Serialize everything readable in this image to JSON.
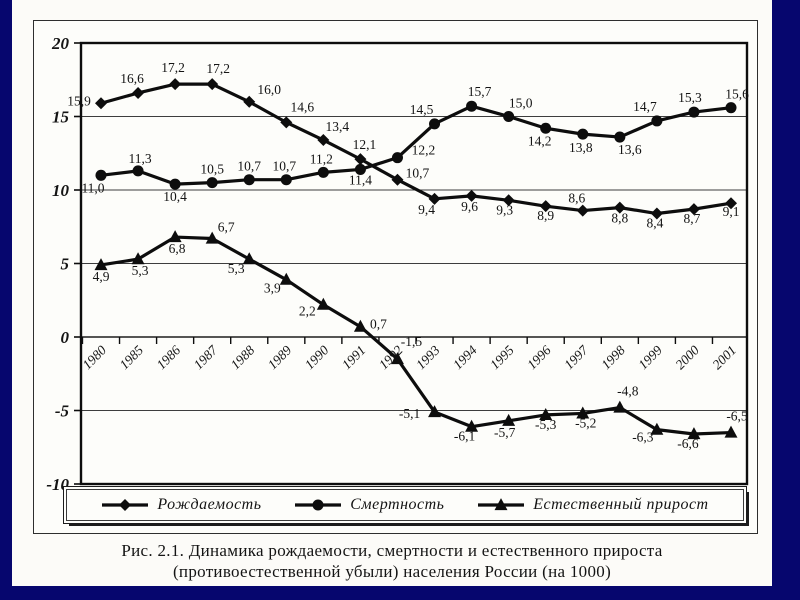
{
  "slide": {
    "frame_color": "#06066e",
    "paper_color": "#fcfbf8",
    "ink_color": "#141414"
  },
  "caption": {
    "line1": "Рис. 2.1. Динамика рождаемости, смертности и естественного прироста",
    "line2": "(противоестественной убыли) населения России (на 1000)"
  },
  "chart_data": {
    "type": "line",
    "title": "",
    "xlabel": "",
    "ylabel": "",
    "ylim": [
      -10,
      20
    ],
    "yticks": [
      20,
      15,
      10,
      5,
      0,
      -5,
      -10
    ],
    "grid": true,
    "legend_position": "bottom",
    "decimal_separator": ",",
    "categories": [
      "1980",
      "1985",
      "1986",
      "1987",
      "1988",
      "1989",
      "1990",
      "1991",
      "1992",
      "1993",
      "1994",
      "1995",
      "1996",
      "1997",
      "1998",
      "1999",
      "2000",
      "2001"
    ],
    "series": [
      {
        "id": "birth-rate",
        "name": "Рождаемость",
        "marker": "diamond",
        "values": [
          15.9,
          16.6,
          17.2,
          17.2,
          16.0,
          14.6,
          13.4,
          12.1,
          10.7,
          9.4,
          9.6,
          9.3,
          8.9,
          8.6,
          8.8,
          8.4,
          8.7,
          9.1
        ],
        "label_offsets": [
          [
            -22,
            2
          ],
          [
            -6,
            -10
          ],
          [
            -2,
            -12
          ],
          [
            6,
            -11
          ],
          [
            20,
            -8
          ],
          [
            16,
            -11
          ],
          [
            14,
            -9
          ],
          [
            4,
            -10
          ],
          [
            20,
            -2
          ],
          [
            -8,
            15
          ],
          [
            -2,
            15
          ],
          [
            -4,
            14
          ],
          [
            0,
            14
          ],
          [
            -6,
            -8
          ],
          [
            0,
            15
          ],
          [
            -2,
            14
          ],
          [
            -2,
            14
          ],
          [
            0,
            13
          ]
        ]
      },
      {
        "id": "death-rate",
        "name": "Смертность",
        "marker": "circle",
        "values": [
          11.0,
          11.3,
          10.4,
          10.5,
          10.7,
          10.7,
          11.2,
          11.4,
          12.2,
          14.5,
          15.7,
          15.0,
          14.2,
          13.8,
          13.6,
          14.7,
          15.3,
          15.6
        ],
        "label_offsets": [
          [
            -8,
            17
          ],
          [
            2,
            -8
          ],
          [
            0,
            17
          ],
          [
            0,
            -9
          ],
          [
            0,
            -9
          ],
          [
            -2,
            -9
          ],
          [
            -2,
            -9
          ],
          [
            0,
            15
          ],
          [
            26,
            -3
          ],
          [
            -13,
            -10
          ],
          [
            8,
            -10
          ],
          [
            12,
            -9
          ],
          [
            -6,
            17
          ],
          [
            -2,
            18
          ],
          [
            10,
            17
          ],
          [
            -12,
            -10
          ],
          [
            -4,
            -10
          ],
          [
            6,
            -9
          ]
        ]
      },
      {
        "id": "natural-increase",
        "name": "Естественный прирост",
        "marker": "triangle",
        "values": [
          4.9,
          5.3,
          6.8,
          6.7,
          5.3,
          3.9,
          2.2,
          0.7,
          -1.5,
          -5.1,
          -6.1,
          -5.7,
          -5.3,
          -5.2,
          -4.8,
          -6.3,
          -6.6,
          -6.5
        ],
        "label_offsets": [
          [
            0,
            16
          ],
          [
            2,
            16
          ],
          [
            2,
            16
          ],
          [
            14,
            -7
          ],
          [
            -13,
            14
          ],
          [
            -14,
            13
          ],
          [
            -16,
            11
          ],
          [
            18,
            2
          ],
          [
            14,
            -13
          ],
          [
            -25,
            6
          ],
          [
            -7,
            14
          ],
          [
            -4,
            16
          ],
          [
            0,
            14
          ],
          [
            3,
            14
          ],
          [
            8,
            -12
          ],
          [
            -14,
            12
          ],
          [
            -6,
            14
          ],
          [
            6,
            -12
          ]
        ]
      }
    ]
  }
}
